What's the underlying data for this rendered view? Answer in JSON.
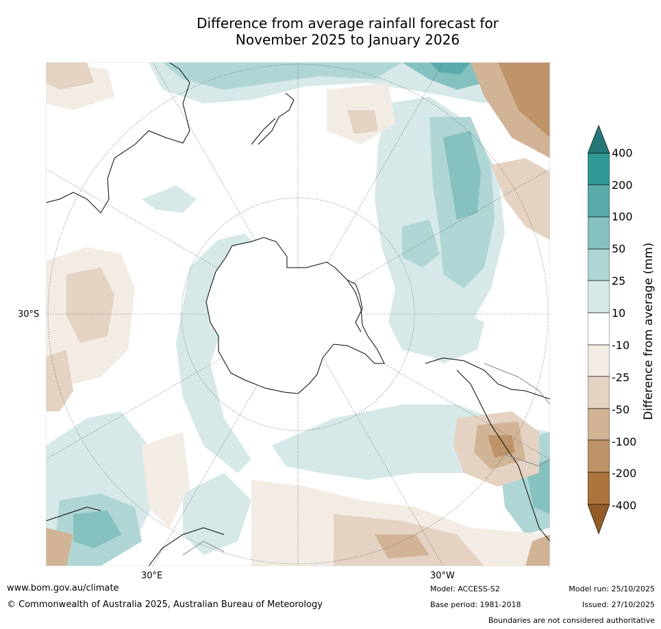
{
  "title": {
    "line1": "Difference from average rainfall forecast for",
    "line2": "November 2025 to January 2026"
  },
  "map": {
    "projection": "south-polar stereographic",
    "lat_label": "30°S",
    "lon_labels": {
      "east": "30°E",
      "west": "30°W"
    }
  },
  "legend": {
    "title": "Difference from average (mm)",
    "ticks": [
      "400",
      "200",
      "100",
      "50",
      "25",
      "10",
      "-10",
      "-25",
      "-50",
      "-100",
      "-200",
      "-400"
    ],
    "colors": {
      "wet_extreme": "#267878",
      "wet_400": "#319a96",
      "wet_200": "#5aabab",
      "wet_100": "#84c1bf",
      "wet_50": "#afd6d4",
      "wet_25": "#d6e9e8",
      "neutral": "#ffffff",
      "dry_10": "#f2ece5",
      "dry_25": "#e4d2c2",
      "dry_50": "#d1b396",
      "dry_100": "#be9368",
      "dry_200": "#ac733d",
      "dry_extreme": "#935b27"
    }
  },
  "footer": {
    "url": "www.bom.gov.au/climate",
    "copyright": "© Commonwealth of Australia 2025, Australian Bureau of Meteorology",
    "model": "Model: ACCESS-S2",
    "base_period": "Base period: 1981-2018",
    "model_run": "Model run: 25/10/2025",
    "issued": "Issued: 27/10/2025",
    "disclaimer": "Boundaries are not considered authoritative"
  }
}
